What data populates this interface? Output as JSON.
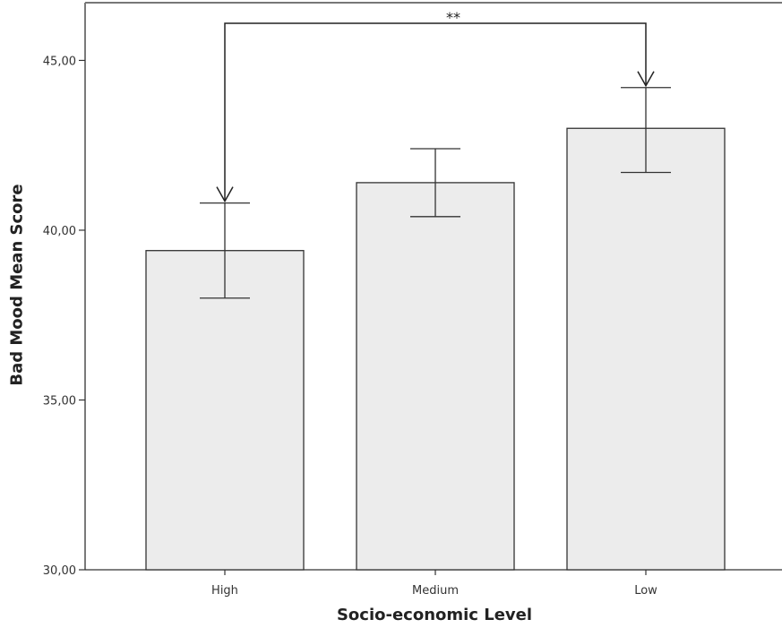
{
  "chart_data": {
    "type": "bar",
    "categories": [
      "High",
      "Medium",
      "Low"
    ],
    "values": [
      39.4,
      41.4,
      43.0
    ],
    "error_bars": [
      {
        "low": 38.0,
        "high": 40.8
      },
      {
        "low": 40.4,
        "high": 42.4
      },
      {
        "low": 41.7,
        "high": 44.2
      }
    ],
    "xlabel": "Socio-economic Level",
    "ylabel": "Bad Mood Mean Score",
    "ylim": [
      30,
      46.7
    ],
    "yticks": [
      "30,00",
      "35,00",
      "40,00",
      "45,00"
    ],
    "ytick_values": [
      30,
      35,
      40,
      45
    ],
    "annotation": {
      "text": "**",
      "from": "High",
      "to": "Low"
    },
    "grid": false,
    "colors": {
      "bar_fill": "#ececec",
      "bar_stroke": "#333333",
      "axis": "#333333"
    }
  }
}
